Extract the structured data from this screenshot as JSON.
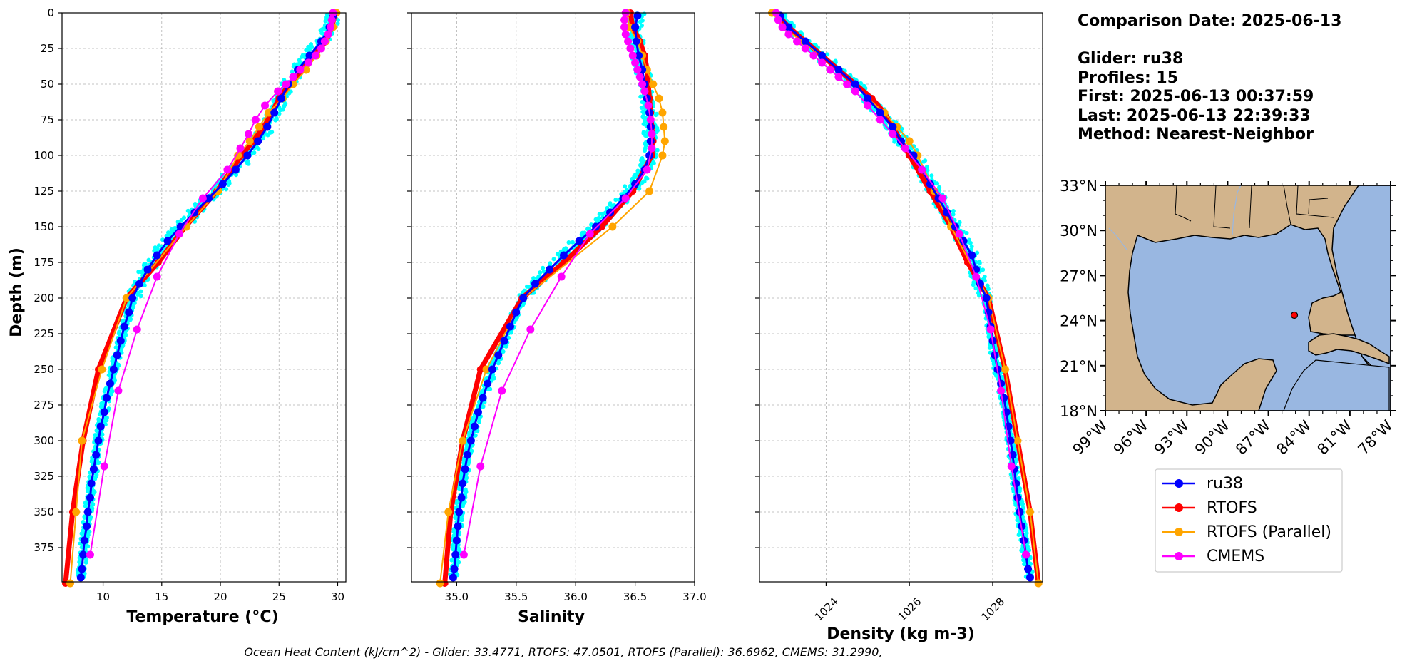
{
  "info": {
    "comparison_date": "Comparison Date: 2025-06-13",
    "glider": "Glider: ru38",
    "profiles": "Profiles: 15",
    "first": "First: 2025-06-13 00:37:59",
    "last": "Last: 2025-06-13 22:39:33",
    "method": "Method: Nearest-Neighbor"
  },
  "footer": "Ocean Heat Content (kJ/cm^2) - Glider: 33.4771,  RTOFS: 47.0501,  RTOFS (Parallel): 36.6962,  CMEMS: 31.2990,",
  "colors": {
    "glider_points": "#00ffff",
    "ru38": "#0000ff",
    "RTOFS": "#ff0000",
    "RTOFS (Parallel)": "#ffa500",
    "CMEMS": "#ff00ff",
    "land": "#d2b48c",
    "ocean": "#99b7e1"
  },
  "legend": [
    "ru38",
    "RTOFS",
    "RTOFS (Parallel)",
    "CMEMS"
  ],
  "chart_data": [
    {
      "type": "line",
      "xlabel": "Temperature (°C)",
      "ylabel": "Depth (m)",
      "xlim": [
        6.5,
        30.7
      ],
      "ylim": [
        399,
        0
      ],
      "xticks": [
        10,
        15,
        20,
        25,
        30
      ],
      "yticks": [
        0,
        25,
        50,
        75,
        100,
        125,
        150,
        175,
        200,
        225,
        250,
        275,
        300,
        325,
        350,
        375
      ],
      "grid": true,
      "series": [
        {
          "name": "ru38",
          "depth": [
            2,
            10,
            20,
            30,
            40,
            50,
            60,
            70,
            80,
            90,
            100,
            110,
            120,
            130,
            140,
            150,
            160,
            170,
            180,
            190,
            200,
            210,
            220,
            230,
            240,
            250,
            260,
            270,
            280,
            290,
            300,
            310,
            320,
            330,
            340,
            350,
            360,
            370,
            380,
            390,
            396
          ],
          "values": [
            29.6,
            29.3,
            28.6,
            27.6,
            26.6,
            25.8,
            25.2,
            24.6,
            24.0,
            23.2,
            22.3,
            21.3,
            20.2,
            19.0,
            17.8,
            16.6,
            15.5,
            14.6,
            13.8,
            13.1,
            12.5,
            12.2,
            11.8,
            11.5,
            11.2,
            10.9,
            10.6,
            10.3,
            10.1,
            9.8,
            9.6,
            9.4,
            9.2,
            9.0,
            8.9,
            8.7,
            8.6,
            8.4,
            8.3,
            8.2,
            8.1
          ]
        },
        {
          "name": "RTOFS",
          "depth": [
            0,
            10,
            20,
            30,
            40,
            50,
            60,
            70,
            80,
            90,
            100,
            125,
            150,
            175,
            200,
            250,
            300,
            350,
            400
          ],
          "values": [
            29.8,
            29.5,
            29.0,
            28.0,
            27.0,
            25.9,
            25.0,
            24.4,
            23.7,
            22.8,
            21.8,
            19.7,
            17.0,
            14.7,
            12.0,
            9.6,
            8.3,
            7.4,
            6.8
          ]
        },
        {
          "name": "RTOFS (Parallel)",
          "depth": [
            0,
            10,
            20,
            30,
            40,
            50,
            60,
            70,
            80,
            90,
            100,
            125,
            150,
            200,
            250,
            300,
            350,
            400
          ],
          "values": [
            29.9,
            29.6,
            29.0,
            28.2,
            27.3,
            26.2,
            25.3,
            24.1,
            23.3,
            22.5,
            21.5,
            19.8,
            17.1,
            12.0,
            9.9,
            8.2,
            7.7,
            7.2
          ]
        },
        {
          "name": "CMEMS",
          "depth": [
            0,
            5,
            10,
            15,
            20,
            25,
            30,
            35,
            40,
            45,
            50,
            55,
            65,
            75,
            85,
            95,
            110,
            130,
            155,
            185,
            222,
            265,
            318,
            380
          ],
          "values": [
            29.6,
            29.5,
            29.4,
            29.2,
            28.9,
            28.6,
            28.1,
            27.5,
            26.8,
            26.2,
            25.6,
            24.9,
            23.8,
            23.0,
            22.4,
            21.7,
            20.6,
            18.5,
            16.5,
            14.6,
            12.9,
            11.3,
            10.1,
            8.9
          ]
        }
      ]
    },
    {
      "type": "line",
      "xlabel": "Salinity",
      "xlim": [
        34.62,
        37.0
      ],
      "ylim": [
        399,
        0
      ],
      "xticks": [
        35.0,
        35.5,
        36.0,
        36.5,
        37.0
      ],
      "grid": true,
      "series": [
        {
          "name": "ru38",
          "depth": [
            2,
            10,
            20,
            30,
            40,
            50,
            60,
            70,
            80,
            90,
            100,
            110,
            120,
            130,
            140,
            150,
            160,
            170,
            180,
            190,
            200,
            210,
            220,
            230,
            240,
            250,
            260,
            270,
            280,
            290,
            300,
            310,
            320,
            330,
            340,
            350,
            360,
            370,
            380,
            390,
            396
          ],
          "values": [
            36.52,
            36.5,
            36.51,
            36.53,
            36.56,
            36.58,
            36.6,
            36.62,
            36.63,
            36.63,
            36.62,
            36.58,
            36.5,
            36.4,
            36.29,
            36.17,
            36.03,
            35.9,
            35.78,
            35.66,
            35.56,
            35.5,
            35.45,
            35.4,
            35.35,
            35.3,
            35.26,
            35.22,
            35.18,
            35.15,
            35.12,
            35.09,
            35.07,
            35.05,
            35.04,
            35.02,
            35.01,
            35.0,
            34.99,
            34.98,
            34.97
          ]
        },
        {
          "name": "RTOFS",
          "depth": [
            0,
            10,
            20,
            30,
            40,
            50,
            60,
            70,
            80,
            90,
            100,
            125,
            150,
            175,
            200,
            250,
            300,
            350,
            400
          ],
          "values": [
            36.46,
            36.48,
            36.54,
            36.58,
            36.6,
            36.61,
            36.62,
            36.63,
            36.64,
            36.65,
            36.64,
            36.48,
            36.22,
            35.9,
            35.55,
            35.2,
            35.05,
            34.95,
            34.9
          ]
        },
        {
          "name": "RTOFS (Parallel)",
          "depth": [
            0,
            10,
            20,
            30,
            40,
            50,
            60,
            70,
            80,
            90,
            100,
            125,
            150,
            200,
            250,
            300,
            350,
            400
          ],
          "values": [
            36.43,
            36.45,
            36.52,
            36.56,
            36.6,
            36.65,
            36.7,
            36.73,
            36.74,
            36.75,
            36.73,
            36.62,
            36.31,
            35.56,
            35.25,
            35.05,
            34.93,
            34.86
          ]
        },
        {
          "name": "CMEMS",
          "depth": [
            0,
            5,
            10,
            15,
            20,
            25,
            30,
            35,
            40,
            45,
            50,
            55,
            65,
            75,
            85,
            95,
            110,
            130,
            155,
            185,
            222,
            265,
            318,
            380
          ],
          "values": [
            36.42,
            36.41,
            36.41,
            36.42,
            36.44,
            36.46,
            36.48,
            36.5,
            36.52,
            36.54,
            36.56,
            36.58,
            36.61,
            36.63,
            36.64,
            36.64,
            36.6,
            36.42,
            36.12,
            35.88,
            35.62,
            35.38,
            35.2,
            35.06
          ]
        }
      ]
    },
    {
      "type": "line",
      "xlabel": "Density (kg m-3)",
      "xlim": [
        1022.4,
        1029.2
      ],
      "ylim": [
        399,
        0
      ],
      "xticks": [
        1024,
        1026,
        1028
      ],
      "grid": true,
      "series": [
        {
          "name": "ru38",
          "depth": [
            2,
            10,
            20,
            30,
            40,
            50,
            60,
            70,
            80,
            90,
            100,
            110,
            120,
            130,
            140,
            150,
            160,
            170,
            180,
            190,
            200,
            210,
            220,
            230,
            240,
            250,
            260,
            270,
            280,
            290,
            300,
            310,
            320,
            330,
            340,
            350,
            360,
            370,
            380,
            390,
            396
          ],
          "values": [
            1022.9,
            1023.1,
            1023.5,
            1023.9,
            1024.3,
            1024.7,
            1025.0,
            1025.3,
            1025.6,
            1025.8,
            1026.1,
            1026.3,
            1026.5,
            1026.7,
            1026.9,
            1027.1,
            1027.3,
            1027.5,
            1027.6,
            1027.7,
            1027.85,
            1027.9,
            1027.95,
            1028.0,
            1028.05,
            1028.12,
            1028.2,
            1028.27,
            1028.33,
            1028.38,
            1028.43,
            1028.48,
            1028.52,
            1028.56,
            1028.6,
            1028.65,
            1028.7,
            1028.75,
            1028.8,
            1028.85,
            1028.9
          ]
        },
        {
          "name": "RTOFS",
          "depth": [
            0,
            10,
            20,
            30,
            40,
            50,
            60,
            70,
            80,
            90,
            100,
            125,
            150,
            175,
            200,
            250,
            300,
            350,
            400
          ],
          "values": [
            1022.8,
            1023.1,
            1023.5,
            1023.9,
            1024.3,
            1024.7,
            1025.1,
            1025.4,
            1025.6,
            1025.8,
            1026.0,
            1026.5,
            1027.0,
            1027.4,
            1027.9,
            1028.3,
            1028.6,
            1028.9,
            1029.1
          ]
        },
        {
          "name": "RTOFS (Parallel)",
          "depth": [
            0,
            10,
            20,
            30,
            40,
            50,
            60,
            70,
            80,
            90,
            100,
            125,
            150,
            200,
            250,
            300,
            350,
            400
          ],
          "values": [
            1022.7,
            1023.0,
            1023.4,
            1023.9,
            1024.3,
            1024.7,
            1025.0,
            1025.4,
            1025.7,
            1026.0,
            1026.2,
            1026.6,
            1027.0,
            1027.9,
            1028.3,
            1028.6,
            1028.9,
            1029.1
          ]
        },
        {
          "name": "CMEMS",
          "depth": [
            0,
            5,
            10,
            15,
            20,
            25,
            30,
            35,
            40,
            45,
            50,
            55,
            65,
            75,
            85,
            95,
            110,
            130,
            155,
            185,
            222,
            265,
            318,
            380
          ],
          "values": [
            1022.8,
            1022.85,
            1022.95,
            1023.1,
            1023.3,
            1023.5,
            1023.7,
            1023.9,
            1024.1,
            1024.3,
            1024.5,
            1024.7,
            1025.0,
            1025.3,
            1025.6,
            1025.9,
            1026.3,
            1026.8,
            1027.2,
            1027.6,
            1027.95,
            1028.2,
            1028.45,
            1028.8
          ]
        }
      ]
    }
  ],
  "map": {
    "lon_ticks": [
      "99°W",
      "96°W",
      "93°W",
      "90°W",
      "87°W",
      "84°W",
      "81°W",
      "78°W"
    ],
    "lat_ticks": [
      "33°N",
      "30°N",
      "27°N",
      "24°N",
      "21°N",
      "18°N"
    ],
    "lon_range": [
      -99,
      -78
    ],
    "lat_range": [
      18,
      33
    ],
    "glider_position": {
      "lon": -85.8,
      "lat": 24.6
    }
  }
}
